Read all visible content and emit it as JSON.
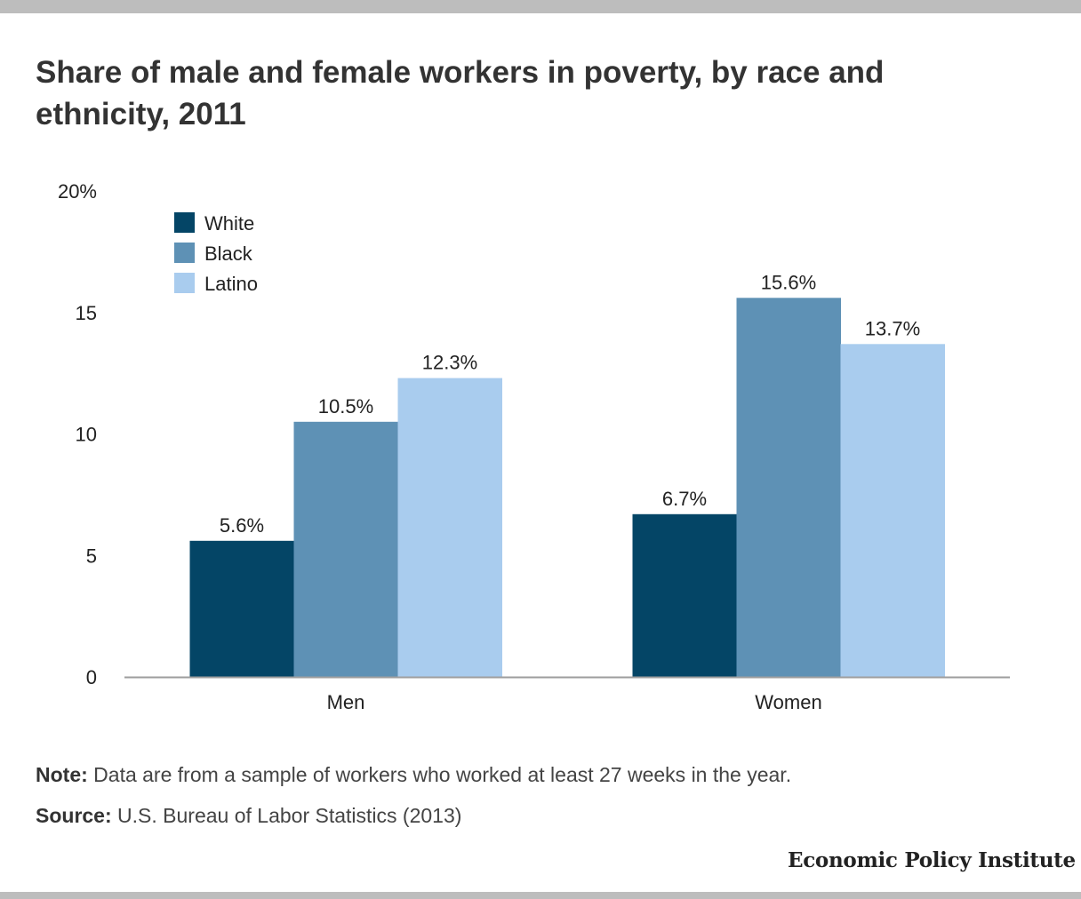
{
  "title": "Share of male and female workers in poverty, by race and ethnicity, 2011",
  "note_label": "Note:",
  "note_text": " Data are from a sample of workers who worked at least 27 weeks in the year.",
  "source_label": "Source:",
  "source_text": " U.S. Bureau of Labor Statistics (2013)",
  "brand": "Economic Policy Institute",
  "chart_data": {
    "type": "bar",
    "categories": [
      "Men",
      "Women"
    ],
    "series": [
      {
        "name": "White",
        "color": "#044566",
        "values": [
          5.6,
          6.7
        ],
        "labels": [
          "5.6%",
          "6.7%"
        ]
      },
      {
        "name": "Black",
        "color": "#5e91b5",
        "values": [
          10.5,
          15.6
        ],
        "labels": [
          "10.5%",
          "15.6%"
        ]
      },
      {
        "name": "Latino",
        "color": "#a9ccee",
        "values": [
          12.3,
          13.7
        ],
        "labels": [
          "12.3%",
          "13.7%"
        ]
      }
    ],
    "ylim": [
      0,
      20
    ],
    "yticks": [
      0,
      5,
      10,
      15,
      20
    ],
    "ytick_labels": [
      "0",
      "5",
      "10",
      "15",
      "20%"
    ],
    "xlabel": "",
    "ylabel": "",
    "legend_position": "top-left",
    "grid": false
  }
}
